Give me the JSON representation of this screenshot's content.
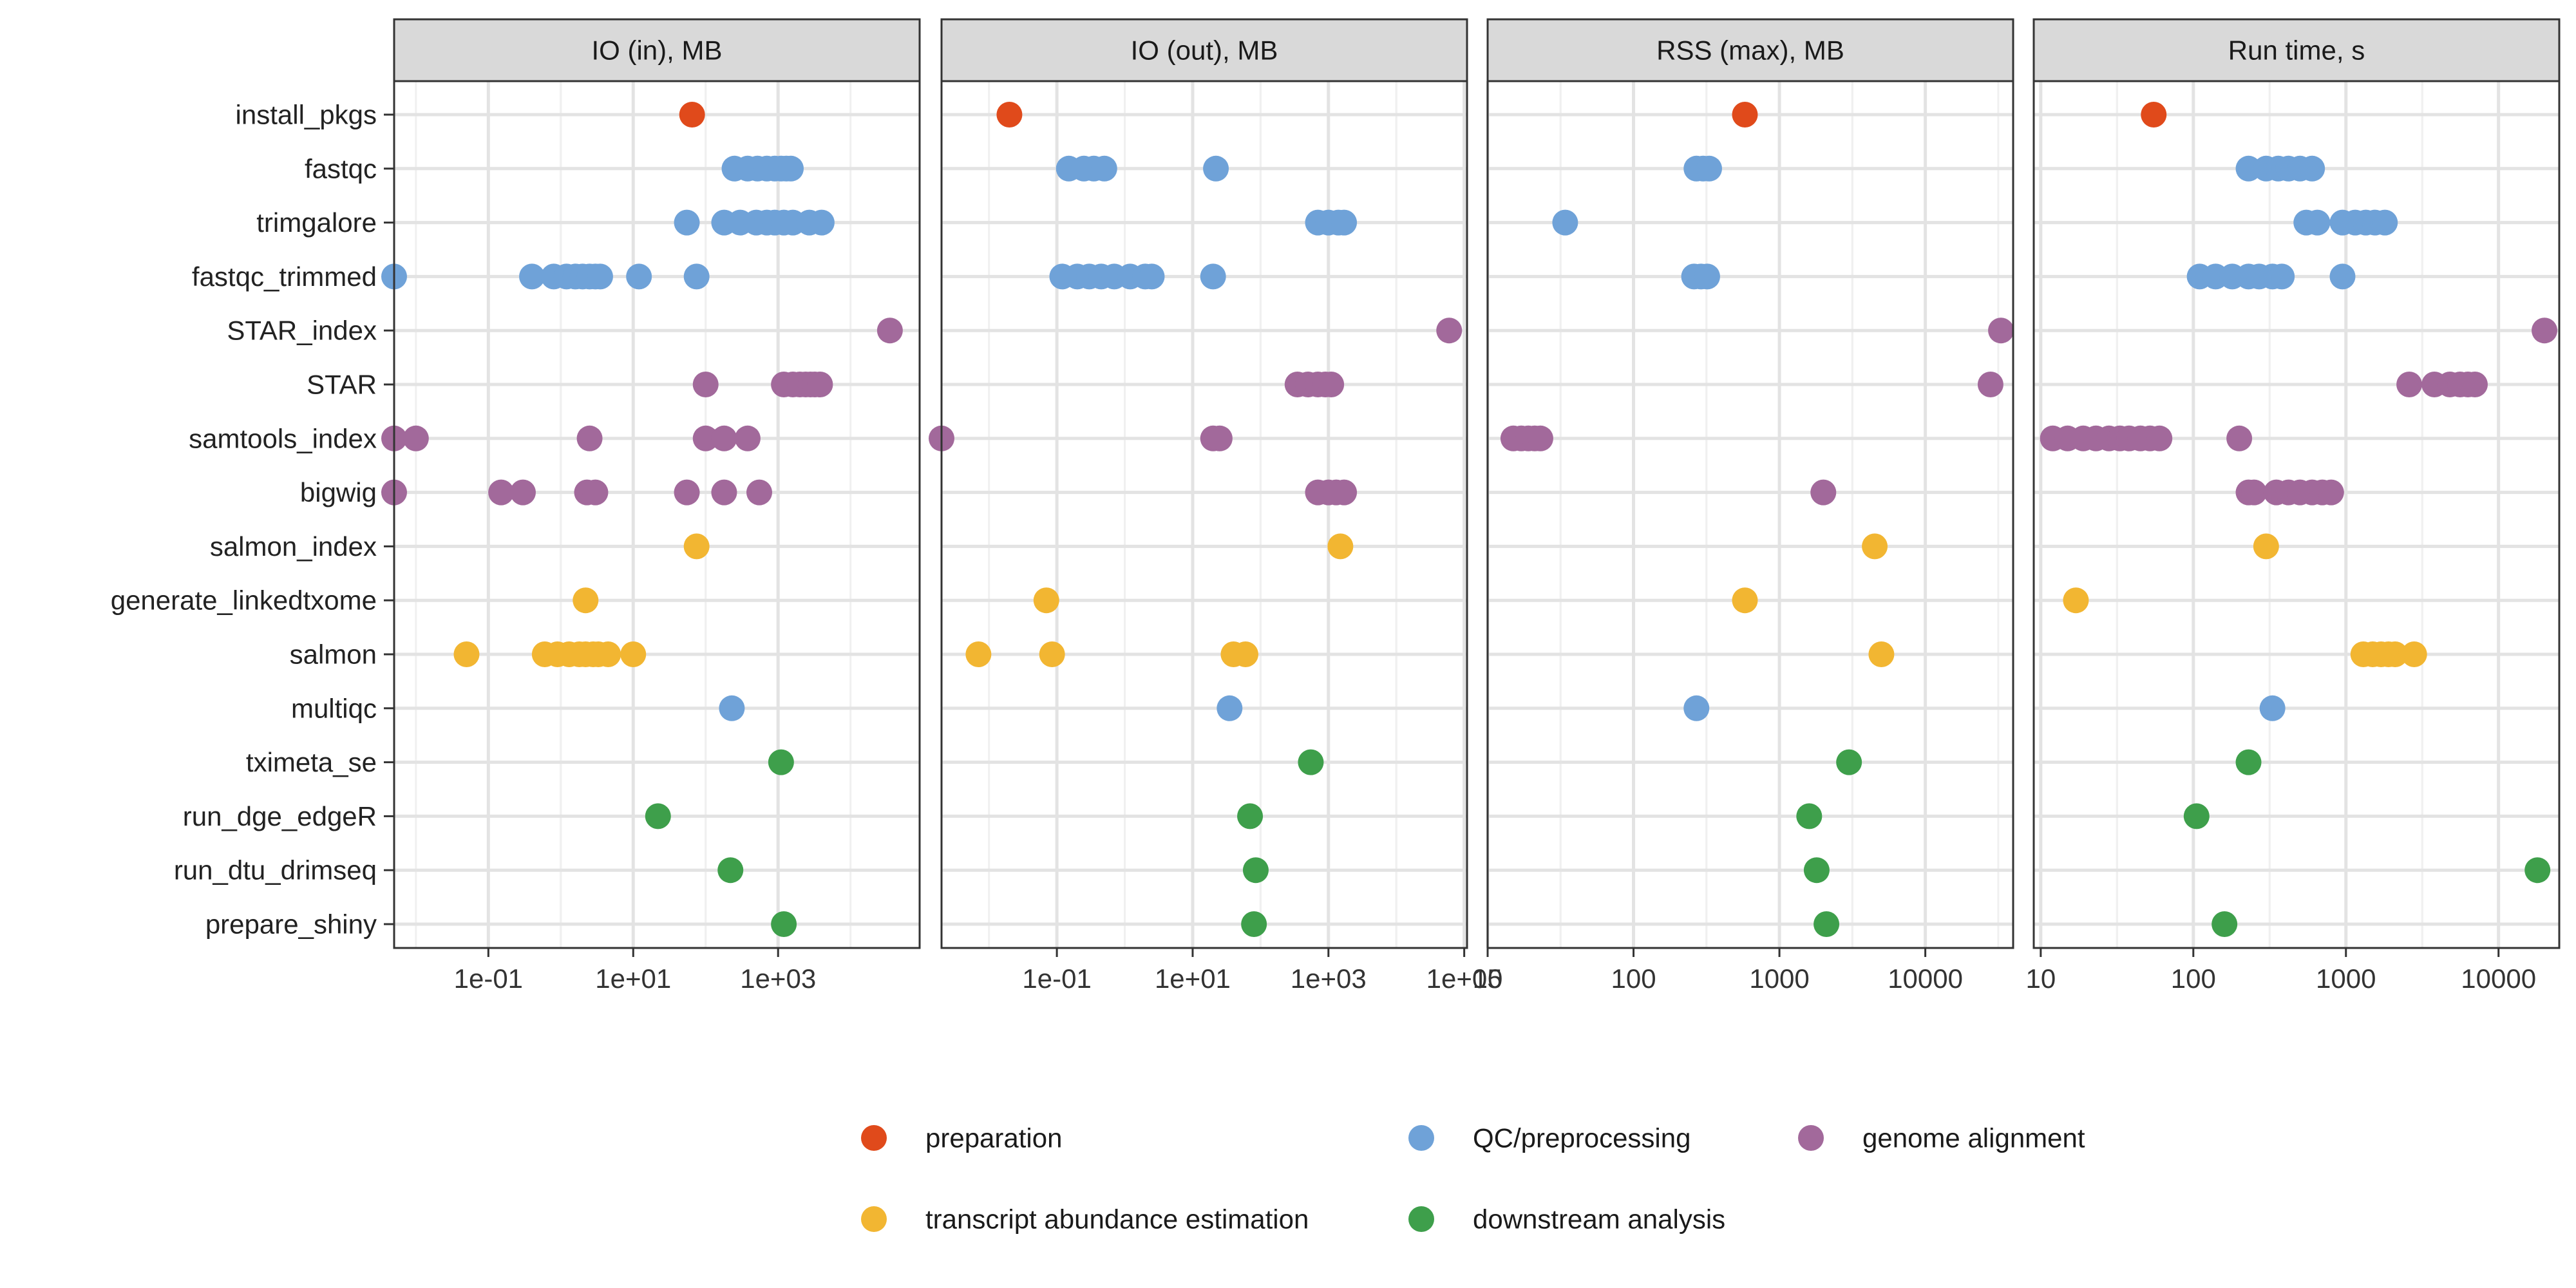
{
  "chart_data": {
    "type": "scatter",
    "layout": "faceted strip plot, shared y categories, log-scale x per facet",
    "y_categories": [
      "install_pkgs",
      "fastqc",
      "trimgalore",
      "fastqc_trimmed",
      "STAR_index",
      "STAR",
      "samtools_index",
      "bigwig",
      "salmon_index",
      "generate_linkedtxome",
      "salmon",
      "multiqc",
      "tximeta_se",
      "run_dge_edgeR",
      "run_dtu_drimseq",
      "prepare_shiny"
    ],
    "groups": [
      {
        "name": "preparation",
        "color": "#E04A1B"
      },
      {
        "name": "QC/preprocessing",
        "color": "#6FA2D8"
      },
      {
        "name": "genome alignment",
        "color": "#A2699B"
      },
      {
        "name": "transcript abundance estimation",
        "color": "#F2B632"
      },
      {
        "name": "downstream analysis",
        "color": "#3E9F4B"
      }
    ],
    "task_group": {
      "install_pkgs": "preparation",
      "fastqc": "QC/preprocessing",
      "trimgalore": "QC/preprocessing",
      "fastqc_trimmed": "QC/preprocessing",
      "multiqc": "QC/preprocessing",
      "STAR_index": "genome alignment",
      "STAR": "genome alignment",
      "samtools_index": "genome alignment",
      "bigwig": "genome alignment",
      "salmon_index": "transcript abundance estimation",
      "generate_linkedtxome": "transcript abundance estimation",
      "salmon": "transcript abundance estimation",
      "tximeta_se": "downstream analysis",
      "run_dge_edgeR": "downstream analysis",
      "run_dtu_drimseq": "downstream analysis",
      "prepare_shiny": "downstream analysis"
    },
    "grid": true,
    "legend_position": "bottom",
    "facets": [
      {
        "title": "IO (in), MB",
        "xscale": "log10",
        "xlim": [
          0.005,
          90000
        ],
        "ticks": [
          0.1,
          10,
          1000
        ],
        "tick_labels": [
          "1e-01",
          "1e+01",
          "1e+03"
        ],
        "points": {
          "install_pkgs": [
            65
          ],
          "fastqc": [
            250,
            380,
            520,
            700,
            900,
            1100,
            1300,
            1500
          ],
          "trimgalore": [
            55,
            180,
            300,
            500,
            700,
            900,
            1200,
            1600,
            2700,
            4000
          ],
          "fastqc_trimmed": [
            0.005,
            0.4,
            0.8,
            1.2,
            1.6,
            2.0,
            2.5,
            3.0,
            3.5,
            12,
            75
          ],
          "STAR_index": [
            35000
          ],
          "STAR": [
            100,
            1200,
            1600,
            2000,
            2400,
            2800,
            3200,
            3800
          ],
          "samtools_index": [
            0.005,
            0.01,
            2.5,
            100,
            180,
            380
          ],
          "bigwig": [
            0.005,
            0.15,
            0.3,
            2.3,
            3.0,
            55,
            180,
            550
          ],
          "salmon_index": [
            75
          ],
          "generate_linkedtxome": [
            2.2
          ],
          "salmon": [
            0.05,
            0.6,
            0.9,
            1.3,
            1.8,
            2.2,
            2.8,
            3.3,
            4.5,
            10
          ],
          "multiqc": [
            230
          ],
          "tximeta_se": [
            1100
          ],
          "run_dge_edgeR": [
            22
          ],
          "run_dtu_drimseq": [
            220
          ],
          "prepare_shiny": [
            1200
          ]
        }
      },
      {
        "title": "IO (out), MB",
        "xscale": "log10",
        "xlim": [
          0.002,
          110000
        ],
        "ticks": [
          0.1,
          10,
          1000,
          100000
        ],
        "tick_labels": [
          "1e-01",
          "1e+01",
          "1e+03",
          "1e+05"
        ],
        "points": {
          "install_pkgs": [
            0.02
          ],
          "fastqc": [
            0.15,
            0.25,
            0.35,
            0.5,
            22
          ],
          "trimgalore": [
            700,
            1000,
            1400,
            1700
          ],
          "fastqc_trimmed": [
            0.12,
            0.2,
            0.3,
            0.45,
            0.7,
            1.2,
            2.0,
            2.5,
            20
          ],
          "STAR_index": [
            60000
          ],
          "STAR": [
            350,
            500,
            700,
            900,
            1100
          ],
          "samtools_index": [
            0.002,
            20,
            25
          ],
          "bigwig": [
            700,
            1000,
            1300,
            1700
          ],
          "salmon_index": [
            1500
          ],
          "generate_linkedtxome": [
            0.07
          ],
          "salmon": [
            0.007,
            0.085,
            40,
            60
          ],
          "multiqc": [
            35
          ],
          "tximeta_se": [
            550
          ],
          "run_dge_edgeR": [
            70
          ],
          "run_dtu_drimseq": [
            85
          ],
          "prepare_shiny": [
            80
          ]
        }
      },
      {
        "title": "RSS (max), MB",
        "xscale": "log10",
        "xlim": [
          10,
          40000
        ],
        "ticks": [
          10,
          100,
          1000,
          10000
        ],
        "tick_labels": [
          "10",
          "100",
          "1000",
          "10000"
        ],
        "points": {
          "install_pkgs": [
            580
          ],
          "fastqc": [
            270,
            300,
            330
          ],
          "trimgalore": [
            34
          ],
          "fastqc_trimmed": [
            260,
            290,
            320
          ],
          "STAR_index": [
            33000
          ],
          "STAR": [
            28000
          ],
          "samtools_index": [
            15,
            17,
            19,
            21,
            23
          ],
          "bigwig": [
            2000
          ],
          "salmon_index": [
            4500
          ],
          "generate_linkedtxome": [
            580
          ],
          "salmon": [
            5000
          ],
          "multiqc": [
            270
          ],
          "tximeta_se": [
            3000
          ],
          "run_dge_edgeR": [
            1600
          ],
          "run_dtu_drimseq": [
            1800
          ],
          "prepare_shiny": [
            2100
          ]
        }
      },
      {
        "title": "Run time, s",
        "xscale": "log10",
        "xlim": [
          9,
          25000
        ],
        "ticks": [
          10,
          100,
          1000,
          10000
        ],
        "tick_labels": [
          "10",
          "100",
          "1000",
          "10000"
        ],
        "points": {
          "install_pkgs": [
            55
          ],
          "fastqc": [
            230,
            300,
            360,
            420,
            500,
            600
          ],
          "trimgalore": [
            550,
            650,
            950,
            1150,
            1350,
            1550,
            1800
          ],
          "fastqc_trimmed": [
            110,
            140,
            180,
            230,
            270,
            330,
            380,
            950
          ],
          "STAR_index": [
            20000
          ],
          "STAR": [
            2600,
            3800,
            4800,
            5600,
            6300,
            7000
          ],
          "samtools_index": [
            12,
            15,
            19,
            23,
            28,
            33,
            38,
            45,
            52,
            60,
            200
          ],
          "bigwig": [
            230,
            250,
            350,
            420,
            500,
            600,
            700,
            800
          ],
          "salmon_index": [
            300
          ],
          "generate_linkedtxome": [
            17
          ],
          "salmon": [
            1300,
            1500,
            1700,
            1900,
            2100,
            2800
          ],
          "multiqc": [
            330
          ],
          "tximeta_se": [
            230
          ],
          "run_dge_edgeR": [
            105
          ],
          "run_dtu_drimseq": [
            18000
          ],
          "prepare_shiny": [
            160
          ]
        }
      }
    ]
  }
}
